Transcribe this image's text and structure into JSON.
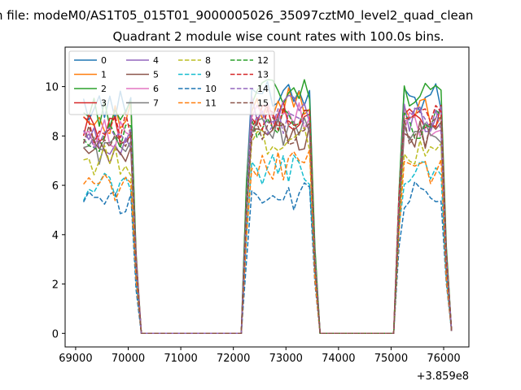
{
  "figure": {
    "suptitle": "n file: modeM0/AS1T05_015T01_9000005026_35097cztM0_level2_quad_clean",
    "title": "Quadrant 2 module wise count rates with 100.0s bins.",
    "offset_label": "+3.859e8"
  },
  "chart_data": {
    "type": "line",
    "title": "Quadrant 2 module wise count rates with 100.0s bins.",
    "xlabel": "",
    "ylabel": "",
    "x_offset": 385900000,
    "xlim": [
      68800,
      76480
    ],
    "ylim": [
      -0.55,
      11.6
    ],
    "xticks": [
      69000,
      70000,
      71000,
      72000,
      73000,
      74000,
      75000,
      76000
    ],
    "yticks": [
      0,
      2,
      4,
      6,
      8,
      10
    ],
    "legend_position": "top-left",
    "grid": false,
    "segments": [
      [
        69150,
        70250
      ],
      [
        72200,
        73650
      ],
      [
        75050,
        76150
      ]
    ],
    "series": [
      {
        "name": "0",
        "color": "#1f77b4",
        "dash": "solid",
        "levels": [
          9.2,
          9.8,
          9.5
        ]
      },
      {
        "name": "1",
        "color": "#ff7f0e",
        "dash": "solid",
        "levels": [
          8.7,
          9.3,
          9.0
        ]
      },
      {
        "name": "2",
        "color": "#2ca02c",
        "dash": "solid",
        "levels": [
          9.0,
          9.7,
          9.6
        ]
      },
      {
        "name": "3",
        "color": "#d62728",
        "dash": "solid",
        "levels": [
          8.3,
          8.8,
          8.8
        ]
      },
      {
        "name": "4",
        "color": "#9467bd",
        "dash": "solid",
        "levels": [
          7.8,
          9.0,
          8.7
        ]
      },
      {
        "name": "5",
        "color": "#8c564b",
        "dash": "solid",
        "levels": [
          7.2,
          8.0,
          8.0
        ]
      },
      {
        "name": "6",
        "color": "#e377c2",
        "dash": "solid",
        "levels": [
          8.1,
          8.7,
          8.6
        ]
      },
      {
        "name": "7",
        "color": "#7f7f7f",
        "dash": "solid",
        "levels": [
          7.5,
          8.2,
          8.0
        ]
      },
      {
        "name": "8",
        "color": "#bcbd22",
        "dash": "dashed",
        "levels": [
          7.0,
          7.8,
          7.2
        ]
      },
      {
        "name": "9",
        "color": "#17becf",
        "dash": "dashed",
        "levels": [
          6.0,
          6.6,
          6.6
        ]
      },
      {
        "name": "10",
        "color": "#1f77b4",
        "dash": "dashed",
        "levels": [
          5.2,
          5.5,
          5.5
        ]
      },
      {
        "name": "11",
        "color": "#ff7f0e",
        "dash": "dashed",
        "levels": [
          5.9,
          6.8,
          6.6
        ]
      },
      {
        "name": "12",
        "color": "#2ca02c",
        "dash": "dashed",
        "levels": [
          8.0,
          8.5,
          8.4
        ]
      },
      {
        "name": "13",
        "color": "#d62728",
        "dash": "dashed",
        "levels": [
          8.3,
          8.7,
          8.8
        ]
      },
      {
        "name": "14",
        "color": "#9467bd",
        "dash": "dashed",
        "levels": [
          7.9,
          8.6,
          8.7
        ]
      },
      {
        "name": "15",
        "color": "#8c564b",
        "dash": "dashed",
        "levels": [
          7.8,
          8.2,
          8.1
        ]
      }
    ]
  }
}
